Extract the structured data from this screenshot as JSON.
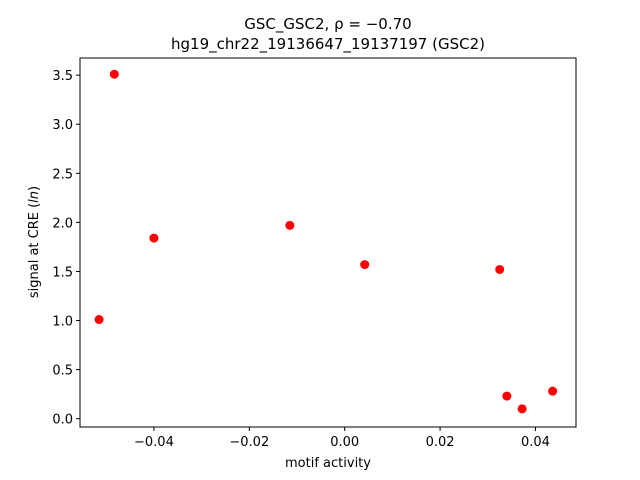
{
  "chart_data": {
    "type": "scatter",
    "title": "GSC_GSC2, ρ = −0.70",
    "subtitle": "hg19_chr22_19136647_19137197 (GSC2)",
    "xlabel": "motif activity",
    "ylabel_prefix": "signal at CRE (",
    "ylabel_italic": "ln",
    "ylabel_suffix": ")",
    "xlim": [
      -0.0555,
      0.0485
    ],
    "ylim": [
      -0.085,
      3.675
    ],
    "x_ticks": [
      {
        "value": -0.04,
        "label": "−0.04"
      },
      {
        "value": -0.02,
        "label": "−0.02"
      },
      {
        "value": 0.0,
        "label": "0.00"
      },
      {
        "value": 0.02,
        "label": "0.02"
      },
      {
        "value": 0.04,
        "label": "0.04"
      }
    ],
    "y_ticks": [
      {
        "value": 0.0,
        "label": "0.0"
      },
      {
        "value": 0.5,
        "label": "0.5"
      },
      {
        "value": 1.0,
        "label": "1.0"
      },
      {
        "value": 1.5,
        "label": "1.5"
      },
      {
        "value": 2.0,
        "label": "2.0"
      },
      {
        "value": 2.5,
        "label": "2.5"
      },
      {
        "value": 3.0,
        "label": "3.0"
      },
      {
        "value": 3.5,
        "label": "3.5"
      }
    ],
    "marker_color": "#ff0000",
    "points": [
      {
        "x": -0.0515,
        "y": 1.01
      },
      {
        "x": -0.0483,
        "y": 3.51
      },
      {
        "x": -0.04,
        "y": 1.84
      },
      {
        "x": -0.0115,
        "y": 1.97
      },
      {
        "x": 0.0042,
        "y": 1.57
      },
      {
        "x": 0.0325,
        "y": 1.52
      },
      {
        "x": 0.034,
        "y": 0.23
      },
      {
        "x": 0.0372,
        "y": 0.1
      },
      {
        "x": 0.0436,
        "y": 0.28
      }
    ]
  }
}
